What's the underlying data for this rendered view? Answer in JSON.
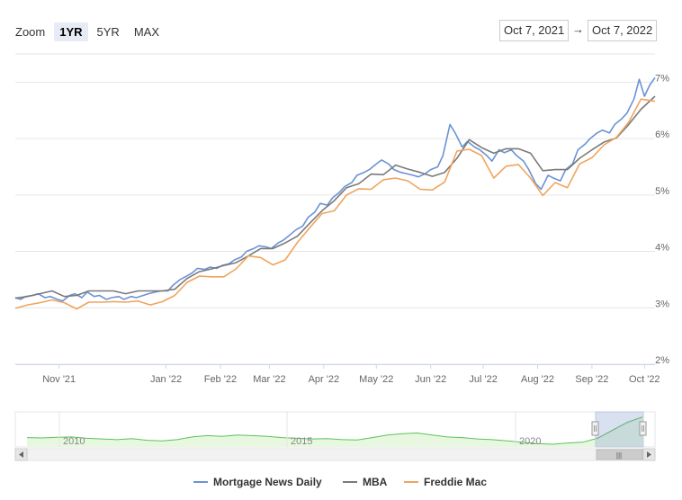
{
  "zoom": {
    "label": "Zoom",
    "buttons": [
      "1YR",
      "5YR",
      "MAX"
    ],
    "active": "1YR"
  },
  "range": {
    "from": "Oct 7, 2021",
    "arrow": "→",
    "to": "Oct 7, 2022"
  },
  "colors": {
    "mnd": "#6b93d6",
    "mba": "#7a7a7a",
    "freddie": "#f0a45d",
    "navigator": "#5cc25c",
    "grid": "#e6e6e6"
  },
  "navigator": {
    "year_labels": [
      "2010",
      "2015",
      "2020"
    ],
    "scrollbar_grip": "|||"
  },
  "chart_data": {
    "type": "line",
    "x_tick_labels": [
      "Nov '21",
      "Jan '22",
      "Feb '22",
      "Mar '22",
      "Apr '22",
      "May '22",
      "Jun '22",
      "Jul '22",
      "Aug '22",
      "Sep '22",
      "Oct '22"
    ],
    "y_tick_labels": [
      "2%",
      "3%",
      "4%",
      "5%",
      "6%",
      "7%"
    ],
    "ylim": [
      2,
      7.5
    ],
    "xlim": [
      "2021-10-07",
      "2022-10-07"
    ],
    "grid": true,
    "legend_position": "bottom-center",
    "series": [
      {
        "name": "Mortgage News Daily",
        "color": "#6b93d6",
        "points": [
          [
            "2021-10-07",
            3.18
          ],
          [
            "2021-10-10",
            3.15
          ],
          [
            "2021-10-13",
            3.2
          ],
          [
            "2021-10-17",
            3.22
          ],
          [
            "2021-10-20",
            3.25
          ],
          [
            "2021-10-24",
            3.18
          ],
          [
            "2021-10-27",
            3.2
          ],
          [
            "2021-10-31",
            3.15
          ],
          [
            "2021-11-03",
            3.12
          ],
          [
            "2021-11-07",
            3.22
          ],
          [
            "2021-11-10",
            3.25
          ],
          [
            "2021-11-14",
            3.18
          ],
          [
            "2021-11-17",
            3.28
          ],
          [
            "2021-11-21",
            3.2
          ],
          [
            "2021-11-24",
            3.22
          ],
          [
            "2021-11-28",
            3.15
          ],
          [
            "2021-12-01",
            3.18
          ],
          [
            "2021-12-05",
            3.2
          ],
          [
            "2021-12-08",
            3.15
          ],
          [
            "2021-12-12",
            3.2
          ],
          [
            "2021-12-15",
            3.18
          ],
          [
            "2021-12-19",
            3.22
          ],
          [
            "2021-12-22",
            3.25
          ],
          [
            "2021-12-26",
            3.28
          ],
          [
            "2021-12-29",
            3.3
          ],
          [
            "2022-01-02",
            3.3
          ],
          [
            "2022-01-05",
            3.4
          ],
          [
            "2022-01-09",
            3.5
          ],
          [
            "2022-01-12",
            3.55
          ],
          [
            "2022-01-16",
            3.62
          ],
          [
            "2022-01-19",
            3.7
          ],
          [
            "2022-01-23",
            3.68
          ],
          [
            "2022-01-26",
            3.72
          ],
          [
            "2022-01-30",
            3.7
          ],
          [
            "2022-02-02",
            3.75
          ],
          [
            "2022-02-06",
            3.78
          ],
          [
            "2022-02-09",
            3.85
          ],
          [
            "2022-02-13",
            3.9
          ],
          [
            "2022-02-16",
            4.0
          ],
          [
            "2022-02-20",
            4.05
          ],
          [
            "2022-02-23",
            4.1
          ],
          [
            "2022-02-27",
            4.08
          ],
          [
            "2022-03-02",
            4.05
          ],
          [
            "2022-03-06",
            4.15
          ],
          [
            "2022-03-09",
            4.2
          ],
          [
            "2022-03-13",
            4.3
          ],
          [
            "2022-03-16",
            4.38
          ],
          [
            "2022-03-20",
            4.45
          ],
          [
            "2022-03-23",
            4.6
          ],
          [
            "2022-03-27",
            4.7
          ],
          [
            "2022-03-30",
            4.85
          ],
          [
            "2022-04-03",
            4.82
          ],
          [
            "2022-04-06",
            4.95
          ],
          [
            "2022-04-10",
            5.05
          ],
          [
            "2022-04-13",
            5.15
          ],
          [
            "2022-04-17",
            5.22
          ],
          [
            "2022-04-20",
            5.35
          ],
          [
            "2022-04-24",
            5.4
          ],
          [
            "2022-04-27",
            5.45
          ],
          [
            "2022-05-01",
            5.55
          ],
          [
            "2022-05-04",
            5.62
          ],
          [
            "2022-05-08",
            5.55
          ],
          [
            "2022-05-11",
            5.45
          ],
          [
            "2022-05-15",
            5.4
          ],
          [
            "2022-05-18",
            5.38
          ],
          [
            "2022-05-22",
            5.35
          ],
          [
            "2022-05-25",
            5.32
          ],
          [
            "2022-05-29",
            5.38
          ],
          [
            "2022-06-01",
            5.45
          ],
          [
            "2022-06-05",
            5.5
          ],
          [
            "2022-06-08",
            5.7
          ],
          [
            "2022-06-12",
            6.25
          ],
          [
            "2022-06-15",
            6.1
          ],
          [
            "2022-06-19",
            5.85
          ],
          [
            "2022-06-22",
            5.95
          ],
          [
            "2022-06-26",
            5.85
          ],
          [
            "2022-06-29",
            5.8
          ],
          [
            "2022-07-03",
            5.7
          ],
          [
            "2022-07-06",
            5.6
          ],
          [
            "2022-07-10",
            5.8
          ],
          [
            "2022-07-13",
            5.75
          ],
          [
            "2022-07-17",
            5.8
          ],
          [
            "2022-07-20",
            5.7
          ],
          [
            "2022-07-24",
            5.6
          ],
          [
            "2022-07-27",
            5.45
          ],
          [
            "2022-07-31",
            5.2
          ],
          [
            "2022-08-03",
            5.1
          ],
          [
            "2022-08-07",
            5.35
          ],
          [
            "2022-08-10",
            5.3
          ],
          [
            "2022-08-14",
            5.25
          ],
          [
            "2022-08-17",
            5.45
          ],
          [
            "2022-08-21",
            5.55
          ],
          [
            "2022-08-24",
            5.8
          ],
          [
            "2022-08-28",
            5.9
          ],
          [
            "2022-08-31",
            6.0
          ],
          [
            "2022-09-04",
            6.1
          ],
          [
            "2022-09-07",
            6.15
          ],
          [
            "2022-09-11",
            6.1
          ],
          [
            "2022-09-14",
            6.25
          ],
          [
            "2022-09-18",
            6.35
          ],
          [
            "2022-09-21",
            6.45
          ],
          [
            "2022-09-25",
            6.7
          ],
          [
            "2022-09-28",
            7.05
          ],
          [
            "2022-10-01",
            6.75
          ],
          [
            "2022-10-04",
            6.95
          ],
          [
            "2022-10-07",
            7.08
          ]
        ]
      },
      {
        "name": "MBA",
        "color": "#7a7a7a",
        "points": [
          [
            "2021-10-07",
            3.17
          ],
          [
            "2021-10-14",
            3.2
          ],
          [
            "2021-10-21",
            3.25
          ],
          [
            "2021-10-28",
            3.3
          ],
          [
            "2021-11-04",
            3.2
          ],
          [
            "2021-11-11",
            3.22
          ],
          [
            "2021-11-18",
            3.3
          ],
          [
            "2021-11-25",
            3.3
          ],
          [
            "2021-12-02",
            3.3
          ],
          [
            "2021-12-09",
            3.25
          ],
          [
            "2021-12-16",
            3.3
          ],
          [
            "2021-12-23",
            3.3
          ],
          [
            "2021-12-30",
            3.3
          ],
          [
            "2022-01-06",
            3.33
          ],
          [
            "2022-01-13",
            3.52
          ],
          [
            "2022-01-20",
            3.64
          ],
          [
            "2022-01-27",
            3.69
          ],
          [
            "2022-02-03",
            3.75
          ],
          [
            "2022-02-10",
            3.8
          ],
          [
            "2022-02-17",
            3.92
          ],
          [
            "2022-02-24",
            4.05
          ],
          [
            "2022-03-03",
            4.05
          ],
          [
            "2022-03-10",
            4.15
          ],
          [
            "2022-03-17",
            4.27
          ],
          [
            "2022-03-24",
            4.5
          ],
          [
            "2022-03-31",
            4.72
          ],
          [
            "2022-04-07",
            4.9
          ],
          [
            "2022-04-14",
            5.13
          ],
          [
            "2022-04-21",
            5.2
          ],
          [
            "2022-04-28",
            5.37
          ],
          [
            "2022-05-05",
            5.36
          ],
          [
            "2022-05-12",
            5.53
          ],
          [
            "2022-05-19",
            5.46
          ],
          [
            "2022-05-26",
            5.4
          ],
          [
            "2022-06-02",
            5.33
          ],
          [
            "2022-06-09",
            5.4
          ],
          [
            "2022-06-16",
            5.65
          ],
          [
            "2022-06-23",
            5.98
          ],
          [
            "2022-06-30",
            5.84
          ],
          [
            "2022-07-07",
            5.74
          ],
          [
            "2022-07-14",
            5.82
          ],
          [
            "2022-07-21",
            5.82
          ],
          [
            "2022-07-28",
            5.74
          ],
          [
            "2022-08-04",
            5.43
          ],
          [
            "2022-08-11",
            5.45
          ],
          [
            "2022-08-18",
            5.45
          ],
          [
            "2022-08-25",
            5.65
          ],
          [
            "2022-09-01",
            5.8
          ],
          [
            "2022-09-08",
            5.94
          ],
          [
            "2022-09-15",
            6.01
          ],
          [
            "2022-09-22",
            6.25
          ],
          [
            "2022-09-29",
            6.52
          ],
          [
            "2022-10-07",
            6.75
          ]
        ]
      },
      {
        "name": "Freddie Mac",
        "color": "#f0a45d",
        "points": [
          [
            "2021-10-07",
            2.99
          ],
          [
            "2021-10-14",
            3.05
          ],
          [
            "2021-10-21",
            3.09
          ],
          [
            "2021-10-28",
            3.14
          ],
          [
            "2021-11-04",
            3.09
          ],
          [
            "2021-11-11",
            2.98
          ],
          [
            "2021-11-18",
            3.1
          ],
          [
            "2021-11-25",
            3.1
          ],
          [
            "2021-12-02",
            3.11
          ],
          [
            "2021-12-09",
            3.1
          ],
          [
            "2021-12-16",
            3.12
          ],
          [
            "2021-12-23",
            3.05
          ],
          [
            "2021-12-30",
            3.11
          ],
          [
            "2022-01-06",
            3.22
          ],
          [
            "2022-01-13",
            3.45
          ],
          [
            "2022-01-20",
            3.56
          ],
          [
            "2022-01-27",
            3.55
          ],
          [
            "2022-02-03",
            3.55
          ],
          [
            "2022-02-10",
            3.69
          ],
          [
            "2022-02-17",
            3.92
          ],
          [
            "2022-02-24",
            3.89
          ],
          [
            "2022-03-03",
            3.76
          ],
          [
            "2022-03-10",
            3.85
          ],
          [
            "2022-03-17",
            4.16
          ],
          [
            "2022-03-24",
            4.42
          ],
          [
            "2022-03-31",
            4.67
          ],
          [
            "2022-04-07",
            4.72
          ],
          [
            "2022-04-14",
            5.0
          ],
          [
            "2022-04-21",
            5.11
          ],
          [
            "2022-04-28",
            5.1
          ],
          [
            "2022-05-05",
            5.27
          ],
          [
            "2022-05-12",
            5.3
          ],
          [
            "2022-05-19",
            5.25
          ],
          [
            "2022-05-26",
            5.1
          ],
          [
            "2022-06-02",
            5.09
          ],
          [
            "2022-06-09",
            5.23
          ],
          [
            "2022-06-16",
            5.78
          ],
          [
            "2022-06-23",
            5.81
          ],
          [
            "2022-06-30",
            5.7
          ],
          [
            "2022-07-07",
            5.3
          ],
          [
            "2022-07-14",
            5.51
          ],
          [
            "2022-07-21",
            5.54
          ],
          [
            "2022-07-28",
            5.3
          ],
          [
            "2022-08-04",
            4.99
          ],
          [
            "2022-08-11",
            5.22
          ],
          [
            "2022-08-18",
            5.13
          ],
          [
            "2022-08-25",
            5.55
          ],
          [
            "2022-09-01",
            5.66
          ],
          [
            "2022-09-08",
            5.89
          ],
          [
            "2022-09-15",
            6.02
          ],
          [
            "2022-09-22",
            6.29
          ],
          [
            "2022-09-29",
            6.7
          ],
          [
            "2022-10-07",
            6.66
          ]
        ]
      }
    ]
  }
}
